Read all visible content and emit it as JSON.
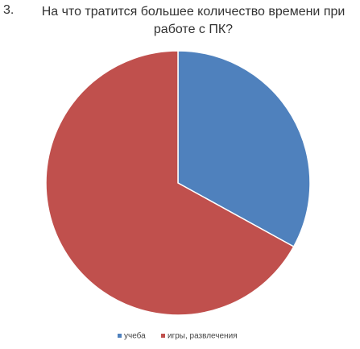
{
  "chart_data": {
    "type": "pie",
    "number": "3.",
    "title": "На что тратится большее количество времени при работе с ПК?",
    "categories": [
      "учеба",
      "игры, развлечения"
    ],
    "values": [
      33,
      67
    ],
    "colors": [
      "#4f81bd",
      "#c0504d"
    ],
    "legend": "bottom"
  }
}
